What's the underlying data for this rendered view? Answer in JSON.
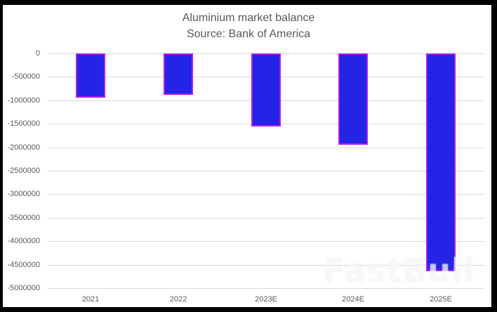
{
  "chart_data": {
    "type": "bar",
    "title": "Aluminium market balance",
    "subtitle": "Source: Bank of America",
    "xlabel": "",
    "ylabel": "",
    "categories": [
      "2021",
      "2022",
      "2023E",
      "2024E",
      "2025E"
    ],
    "values": [
      -950000,
      -880000,
      -1550000,
      -1950000,
      -4640000
    ],
    "ylim": [
      -5000000,
      0
    ],
    "yticks": [
      "0",
      "-500000",
      "-1000000",
      "-1500000",
      "-2000000",
      "-2500000",
      "-3000000",
      "-3500000",
      "-4000000",
      "-4500000",
      "-5000000"
    ],
    "grid": true,
    "legend": null,
    "colors": {
      "bar_fill": "#2424e6",
      "bar_border": "#b01ee8"
    }
  },
  "watermark": "FastBull"
}
